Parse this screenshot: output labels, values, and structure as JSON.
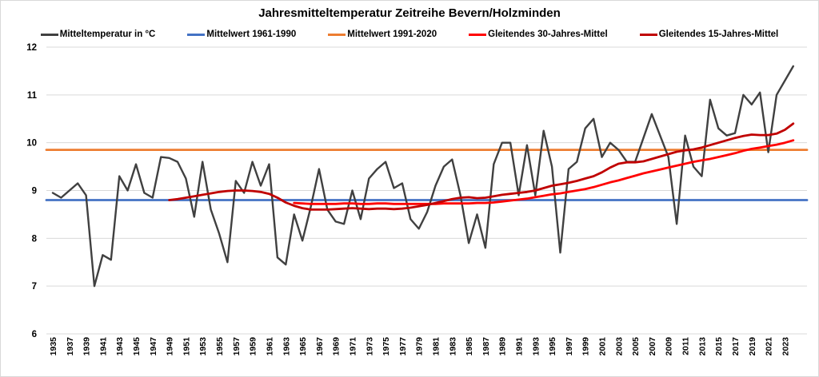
{
  "title": "Jahresmitteltemperatur Zeitreihe Bevern/Holzminden",
  "legend": [
    {
      "label": "Mitteltemperatur in °C",
      "color": "#404040"
    },
    {
      "label": "Mittelwert 1961-1990",
      "color": "#4472C4"
    },
    {
      "label": "Mittelwert 1991-2020",
      "color": "#ED7D31"
    },
    {
      "label": "Gleitendes 30-Jahres-Mittel",
      "color": "#FF0000"
    },
    {
      "label": "Gleitendes 15-Jahres-Mittel",
      "color": "#C00000"
    }
  ],
  "chart_data": {
    "type": "line",
    "title": "Jahresmitteltemperatur Zeitreihe Bevern/Holzminden",
    "xlabel": "",
    "ylabel": "",
    "xlim": [
      1934,
      2025
    ],
    "ylim": [
      6,
      12
    ],
    "grid": true,
    "grid_color": "#D9D9D9",
    "legend_position": "top",
    "y_ticks": [
      "12",
      "11",
      "10",
      "9",
      "8",
      "7",
      "6"
    ],
    "x_tick_labels": [
      "1935",
      "1937",
      "1939",
      "1941",
      "1943",
      "1945",
      "1947",
      "1949",
      "1951",
      "1953",
      "1955",
      "1957",
      "1959",
      "1961",
      "1963",
      "1965",
      "1967",
      "1969",
      "1971",
      "1973",
      "1975",
      "1977",
      "1979",
      "1981",
      "1983",
      "1985",
      "1987",
      "1989",
      "1991",
      "1993",
      "1995",
      "1997",
      "1999",
      "2001",
      "2003",
      "2005",
      "2007",
      "2009",
      "2011",
      "2013",
      "2015",
      "2017",
      "2019",
      "2021",
      "2023"
    ],
    "series": [
      {
        "name": "Mitteltemperatur in °C",
        "color": "#404040",
        "start_year": 1935,
        "values": [
          8.95,
          8.85,
          9.0,
          9.15,
          8.9,
          7.0,
          7.65,
          7.55,
          9.3,
          9.0,
          9.55,
          8.95,
          8.85,
          9.7,
          9.68,
          9.6,
          9.25,
          8.45,
          9.6,
          8.6,
          8.1,
          7.5,
          9.2,
          8.95,
          9.6,
          9.1,
          9.55,
          7.6,
          7.45,
          8.5,
          7.95,
          8.65,
          9.45,
          8.6,
          8.35,
          8.3,
          9.0,
          8.4,
          9.25,
          9.45,
          9.6,
          9.05,
          9.15,
          8.4,
          8.2,
          8.55,
          9.1,
          9.5,
          9.65,
          8.9,
          7.9,
          8.5,
          7.8,
          9.55,
          10.0,
          10.0,
          8.9,
          9.95,
          8.9,
          10.25,
          9.5,
          7.7,
          9.45,
          9.6,
          10.3,
          10.5,
          9.7,
          10.0,
          9.85,
          9.6,
          9.6,
          10.1,
          10.6,
          10.15,
          9.7,
          8.3,
          10.15,
          9.5,
          9.3,
          10.9,
          10.3,
          10.15,
          10.2,
          11.0,
          10.8,
          11.05,
          9.8,
          11.0,
          11.3,
          11.6
        ]
      },
      {
        "name": "Mittelwert 1961-1990",
        "color": "#4472C4",
        "constant": 8.8
      },
      {
        "name": "Mittelwert 1991-2020",
        "color": "#ED7D31",
        "constant": 9.85
      },
      {
        "name": "Gleitendes 30-Jahres-Mittel",
        "color": "#FF0000",
        "start_year": 1964,
        "values": [
          8.74,
          8.73,
          8.72,
          8.72,
          8.72,
          8.72,
          8.73,
          8.73,
          8.72,
          8.72,
          8.73,
          8.73,
          8.72,
          8.72,
          8.72,
          8.72,
          8.72,
          8.72,
          8.73,
          8.73,
          8.73,
          8.73,
          8.74,
          8.74,
          8.75,
          8.77,
          8.79,
          8.81,
          8.83,
          8.86,
          8.89,
          8.92,
          8.94,
          8.97,
          9.0,
          9.03,
          9.07,
          9.12,
          9.17,
          9.21,
          9.26,
          9.31,
          9.36,
          9.4,
          9.44,
          9.48,
          9.52,
          9.56,
          9.6,
          9.63,
          9.66,
          9.7,
          9.74,
          9.78,
          9.83,
          9.87,
          9.9,
          9.93,
          9.96,
          10.0,
          10.05
        ]
      },
      {
        "name": "Gleitendes 15-Jahres-Mittel",
        "color": "#C00000",
        "start_year": 1949,
        "values": [
          8.8,
          8.82,
          8.85,
          8.88,
          8.91,
          8.94,
          8.97,
          8.99,
          9.0,
          9.0,
          8.99,
          8.97,
          8.93,
          8.85,
          8.75,
          8.68,
          8.63,
          8.6,
          8.6,
          8.6,
          8.61,
          8.62,
          8.63,
          8.62,
          8.61,
          8.62,
          8.62,
          8.61,
          8.62,
          8.64,
          8.67,
          8.7,
          8.74,
          8.78,
          8.82,
          8.85,
          8.86,
          8.84,
          8.85,
          8.88,
          8.91,
          8.93,
          8.95,
          8.97,
          9.0,
          9.05,
          9.1,
          9.13,
          9.16,
          9.2,
          9.25,
          9.3,
          9.38,
          9.48,
          9.56,
          9.59,
          9.59,
          9.61,
          9.66,
          9.71,
          9.76,
          9.81,
          9.84,
          9.86,
          9.9,
          9.95,
          10.0,
          10.05,
          10.1,
          10.14,
          10.17,
          10.16,
          10.16,
          10.19,
          10.27,
          10.4
        ]
      }
    ]
  }
}
